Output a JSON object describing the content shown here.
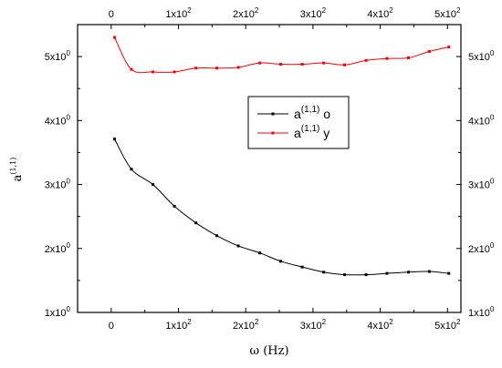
{
  "chart_data": {
    "type": "line",
    "title": "",
    "xlabel": "ω (Hz)",
    "ylabel_main": "a",
    "ylabel_sup": "(1,1)",
    "xlim": [
      -50,
      520
    ],
    "ylim": [
      1.0,
      5.5
    ],
    "grid": false,
    "legend_position": "center-right",
    "x_ticks": [
      {
        "value": 0,
        "base": "0",
        "sup": ""
      },
      {
        "value": 100,
        "base": "1x10",
        "sup": "2"
      },
      {
        "value": 200,
        "base": "2x10",
        "sup": "2"
      },
      {
        "value": 300,
        "base": "3x10",
        "sup": "2"
      },
      {
        "value": 400,
        "base": "4x10",
        "sup": "2"
      },
      {
        "value": 500,
        "base": "5x10",
        "sup": "2"
      }
    ],
    "y_ticks": [
      {
        "value": 1,
        "base": "1x10",
        "sup": "0"
      },
      {
        "value": 2,
        "base": "2x10",
        "sup": "0"
      },
      {
        "value": 3,
        "base": "3x10",
        "sup": "0"
      },
      {
        "value": 4,
        "base": "4x10",
        "sup": "0"
      },
      {
        "value": 5,
        "base": "5x10",
        "sup": "0"
      }
    ],
    "series": [
      {
        "label_main": "a",
        "label_sup": "(1,1)",
        "label_suffix": " o",
        "color": "#000000",
        "x": [
          5,
          30,
          62,
          94,
          126,
          157,
          189,
          221,
          252,
          284,
          316,
          347,
          379,
          410,
          442,
          473,
          502
        ],
        "y": [
          3.71,
          3.24,
          3.0,
          2.66,
          2.4,
          2.2,
          2.04,
          1.93,
          1.8,
          1.71,
          1.63,
          1.59,
          1.59,
          1.61,
          1.63,
          1.64,
          1.61
        ]
      },
      {
        "label_main": "a",
        "label_sup": "(1,1)",
        "label_suffix": " y",
        "color": "#ff0000",
        "x": [
          5,
          30,
          62,
          94,
          126,
          157,
          189,
          221,
          252,
          284,
          316,
          347,
          379,
          410,
          442,
          473,
          502
        ],
        "y": [
          5.3,
          4.8,
          4.76,
          4.76,
          4.82,
          4.82,
          4.83,
          4.9,
          4.88,
          4.88,
          4.9,
          4.87,
          4.94,
          4.97,
          4.98,
          5.08,
          5.15
        ]
      }
    ]
  }
}
